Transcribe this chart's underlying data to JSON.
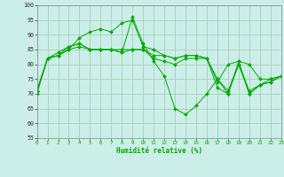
{
  "xlabel": "Humidité relative (%)",
  "background_color": "#cceee8",
  "grid_color": "#aaccbb",
  "line_color": "#00aa00",
  "ylim": [
    55,
    100
  ],
  "xlim": [
    0,
    23
  ],
  "yticks": [
    55,
    60,
    65,
    70,
    75,
    80,
    85,
    90,
    95,
    100
  ],
  "xticks": [
    0,
    1,
    2,
    3,
    4,
    5,
    6,
    7,
    8,
    9,
    10,
    11,
    12,
    13,
    14,
    15,
    16,
    17,
    18,
    19,
    20,
    21,
    22,
    23
  ],
  "series": [
    [
      70,
      82,
      83,
      86,
      87,
      85,
      85,
      85,
      84,
      96,
      87,
      81,
      76,
      65,
      63,
      66,
      70,
      75,
      70,
      80,
      71,
      73,
      75,
      76
    ],
    [
      71,
      82,
      83,
      85,
      89,
      91,
      92,
      91,
      94,
      95,
      86,
      85,
      83,
      82,
      83,
      83,
      82,
      74,
      80,
      81,
      80,
      75,
      75,
      76
    ],
    [
      71,
      82,
      83,
      85,
      86,
      85,
      85,
      85,
      85,
      85,
      85,
      83,
      83,
      82,
      83,
      83,
      82,
      72,
      70,
      81,
      70,
      73,
      74,
      76
    ],
    [
      71,
      82,
      84,
      86,
      87,
      85,
      85,
      85,
      84,
      85,
      85,
      82,
      81,
      80,
      82,
      82,
      82,
      75,
      71,
      80,
      70,
      73,
      74,
      76
    ]
  ]
}
